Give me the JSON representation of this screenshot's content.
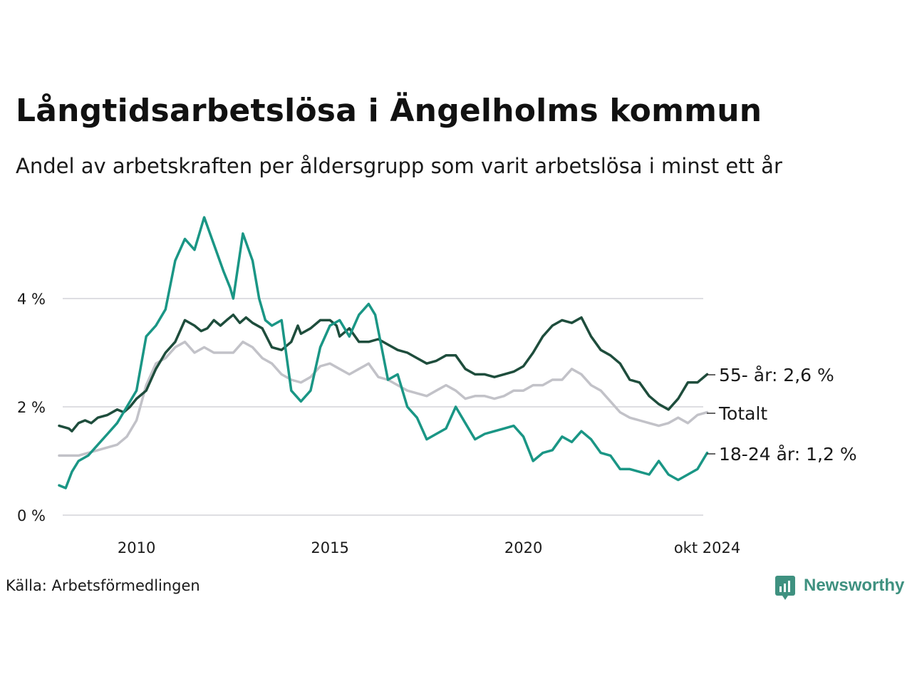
{
  "title": "Långtidsarbetslösa i Ängelholms kommun",
  "subtitle": "Andel av arbetskraften per åldersgrupp som varit arbetslösa i minst ett år",
  "source": "Källa: Arbetsförmedlingen",
  "brand": {
    "name": "Newsworthy",
    "icon": "newsworthy-logo-icon",
    "color": "#3f9180"
  },
  "chart_data": {
    "type": "line",
    "x_unit": "year",
    "xlim": [
      2008.0,
      2024.75
    ],
    "ylim": [
      0,
      5.8
    ],
    "y_ticks": [
      {
        "value": 0,
        "label": "0 %"
      },
      {
        "value": 2,
        "label": "2 %"
      },
      {
        "value": 4,
        "label": "4 %"
      }
    ],
    "x_ticks": [
      {
        "value": 2010,
        "label": "2010"
      },
      {
        "value": 2015,
        "label": "2015"
      },
      {
        "value": 2020,
        "label": "2020"
      },
      {
        "value": 2024.75,
        "label": "okt 2024"
      }
    ],
    "grid": true,
    "legend": "direct labels at right end of lines",
    "series": [
      {
        "name": "Totalt",
        "end_label": "Totalt",
        "color": "#c2c2c8",
        "points": [
          [
            2008.0,
            1.1
          ],
          [
            2008.5,
            1.1
          ],
          [
            2009.0,
            1.2
          ],
          [
            2009.5,
            1.3
          ],
          [
            2009.75,
            1.45
          ],
          [
            2010.0,
            1.75
          ],
          [
            2010.25,
            2.4
          ],
          [
            2010.5,
            2.8
          ],
          [
            2010.75,
            2.9
          ],
          [
            2011.0,
            3.1
          ],
          [
            2011.25,
            3.2
          ],
          [
            2011.5,
            3.0
          ],
          [
            2011.75,
            3.1
          ],
          [
            2012.0,
            3.0
          ],
          [
            2012.5,
            3.0
          ],
          [
            2012.75,
            3.2
          ],
          [
            2013.0,
            3.1
          ],
          [
            2013.25,
            2.9
          ],
          [
            2013.5,
            2.8
          ],
          [
            2013.75,
            2.6
          ],
          [
            2014.0,
            2.5
          ],
          [
            2014.25,
            2.45
          ],
          [
            2014.5,
            2.55
          ],
          [
            2014.75,
            2.75
          ],
          [
            2015.0,
            2.8
          ],
          [
            2015.25,
            2.7
          ],
          [
            2015.5,
            2.6
          ],
          [
            2015.75,
            2.7
          ],
          [
            2016.0,
            2.8
          ],
          [
            2016.25,
            2.55
          ],
          [
            2016.5,
            2.5
          ],
          [
            2016.75,
            2.4
          ],
          [
            2017.0,
            2.3
          ],
          [
            2017.5,
            2.2
          ],
          [
            2017.75,
            2.3
          ],
          [
            2018.0,
            2.4
          ],
          [
            2018.25,
            2.3
          ],
          [
            2018.5,
            2.15
          ],
          [
            2018.75,
            2.2
          ],
          [
            2019.0,
            2.2
          ],
          [
            2019.25,
            2.15
          ],
          [
            2019.5,
            2.2
          ],
          [
            2019.75,
            2.3
          ],
          [
            2020.0,
            2.3
          ],
          [
            2020.25,
            2.4
          ],
          [
            2020.5,
            2.4
          ],
          [
            2020.75,
            2.5
          ],
          [
            2021.0,
            2.5
          ],
          [
            2021.25,
            2.7
          ],
          [
            2021.5,
            2.6
          ],
          [
            2021.75,
            2.4
          ],
          [
            2022.0,
            2.3
          ],
          [
            2022.25,
            2.1
          ],
          [
            2022.5,
            1.9
          ],
          [
            2022.75,
            1.8
          ],
          [
            2023.0,
            1.75
          ],
          [
            2023.25,
            1.7
          ],
          [
            2023.5,
            1.65
          ],
          [
            2023.75,
            1.7
          ],
          [
            2024.0,
            1.8
          ],
          [
            2024.25,
            1.7
          ],
          [
            2024.5,
            1.85
          ],
          [
            2024.75,
            1.9
          ]
        ]
      },
      {
        "name": "55- år",
        "end_label": "55- år: 2,6 %",
        "color": "#1e4d3c",
        "points": [
          [
            2008.0,
            1.65
          ],
          [
            2008.25,
            1.6
          ],
          [
            2008.33,
            1.55
          ],
          [
            2008.5,
            1.7
          ],
          [
            2008.67,
            1.75
          ],
          [
            2008.83,
            1.7
          ],
          [
            2009.0,
            1.8
          ],
          [
            2009.25,
            1.85
          ],
          [
            2009.5,
            1.95
          ],
          [
            2009.67,
            1.9
          ],
          [
            2009.83,
            2.0
          ],
          [
            2010.0,
            2.15
          ],
          [
            2010.25,
            2.3
          ],
          [
            2010.5,
            2.7
          ],
          [
            2010.75,
            3.0
          ],
          [
            2011.0,
            3.2
          ],
          [
            2011.25,
            3.6
          ],
          [
            2011.5,
            3.5
          ],
          [
            2011.67,
            3.4
          ],
          [
            2011.83,
            3.45
          ],
          [
            2012.0,
            3.6
          ],
          [
            2012.17,
            3.5
          ],
          [
            2012.33,
            3.6
          ],
          [
            2012.5,
            3.7
          ],
          [
            2012.67,
            3.55
          ],
          [
            2012.83,
            3.65
          ],
          [
            2013.0,
            3.55
          ],
          [
            2013.25,
            3.45
          ],
          [
            2013.5,
            3.1
          ],
          [
            2013.75,
            3.05
          ],
          [
            2014.0,
            3.2
          ],
          [
            2014.17,
            3.5
          ],
          [
            2014.25,
            3.35
          ],
          [
            2014.5,
            3.45
          ],
          [
            2014.75,
            3.6
          ],
          [
            2015.0,
            3.6
          ],
          [
            2015.17,
            3.5
          ],
          [
            2015.25,
            3.3
          ],
          [
            2015.5,
            3.45
          ],
          [
            2015.75,
            3.2
          ],
          [
            2016.0,
            3.2
          ],
          [
            2016.25,
            3.25
          ],
          [
            2016.5,
            3.15
          ],
          [
            2016.75,
            3.05
          ],
          [
            2017.0,
            3.0
          ],
          [
            2017.25,
            2.9
          ],
          [
            2017.5,
            2.8
          ],
          [
            2017.75,
            2.85
          ],
          [
            2018.0,
            2.95
          ],
          [
            2018.25,
            2.95
          ],
          [
            2018.5,
            2.7
          ],
          [
            2018.75,
            2.6
          ],
          [
            2019.0,
            2.6
          ],
          [
            2019.25,
            2.55
          ],
          [
            2019.5,
            2.6
          ],
          [
            2019.75,
            2.65
          ],
          [
            2020.0,
            2.75
          ],
          [
            2020.25,
            3.0
          ],
          [
            2020.5,
            3.3
          ],
          [
            2020.75,
            3.5
          ],
          [
            2021.0,
            3.6
          ],
          [
            2021.25,
            3.55
          ],
          [
            2021.5,
            3.65
          ],
          [
            2021.75,
            3.3
          ],
          [
            2022.0,
            3.05
          ],
          [
            2022.25,
            2.95
          ],
          [
            2022.5,
            2.8
          ],
          [
            2022.75,
            2.5
          ],
          [
            2023.0,
            2.45
          ],
          [
            2023.25,
            2.2
          ],
          [
            2023.5,
            2.05
          ],
          [
            2023.75,
            1.95
          ],
          [
            2024.0,
            2.15
          ],
          [
            2024.25,
            2.45
          ],
          [
            2024.5,
            2.45
          ],
          [
            2024.75,
            2.6
          ]
        ]
      },
      {
        "name": "18-24 år",
        "end_label": "18-24 år: 1,2 %",
        "color": "#1a9685",
        "points": [
          [
            2008.0,
            0.55
          ],
          [
            2008.17,
            0.5
          ],
          [
            2008.33,
            0.8
          ],
          [
            2008.5,
            1.0
          ],
          [
            2008.75,
            1.1
          ],
          [
            2009.0,
            1.3
          ],
          [
            2009.25,
            1.5
          ],
          [
            2009.5,
            1.7
          ],
          [
            2009.75,
            2.0
          ],
          [
            2010.0,
            2.3
          ],
          [
            2010.25,
            3.3
          ],
          [
            2010.5,
            3.5
          ],
          [
            2010.75,
            3.8
          ],
          [
            2011.0,
            4.7
          ],
          [
            2011.25,
            5.1
          ],
          [
            2011.5,
            4.9
          ],
          [
            2011.75,
            5.5
          ],
          [
            2012.0,
            5.0
          ],
          [
            2012.25,
            4.5
          ],
          [
            2012.42,
            4.2
          ],
          [
            2012.5,
            4.0
          ],
          [
            2012.75,
            5.2
          ],
          [
            2013.0,
            4.7
          ],
          [
            2013.17,
            4.0
          ],
          [
            2013.33,
            3.6
          ],
          [
            2013.5,
            3.5
          ],
          [
            2013.75,
            3.6
          ],
          [
            2014.0,
            2.3
          ],
          [
            2014.25,
            2.1
          ],
          [
            2014.5,
            2.3
          ],
          [
            2014.75,
            3.1
          ],
          [
            2015.0,
            3.5
          ],
          [
            2015.25,
            3.6
          ],
          [
            2015.5,
            3.3
          ],
          [
            2015.75,
            3.7
          ],
          [
            2016.0,
            3.9
          ],
          [
            2016.17,
            3.7
          ],
          [
            2016.5,
            2.5
          ],
          [
            2016.75,
            2.6
          ],
          [
            2017.0,
            2.0
          ],
          [
            2017.25,
            1.8
          ],
          [
            2017.5,
            1.4
          ],
          [
            2017.75,
            1.5
          ],
          [
            2018.0,
            1.6
          ],
          [
            2018.25,
            2.0
          ],
          [
            2018.5,
            1.7
          ],
          [
            2018.75,
            1.4
          ],
          [
            2019.0,
            1.5
          ],
          [
            2019.25,
            1.55
          ],
          [
            2019.5,
            1.6
          ],
          [
            2019.75,
            1.65
          ],
          [
            2020.0,
            1.45
          ],
          [
            2020.25,
            1.0
          ],
          [
            2020.5,
            1.15
          ],
          [
            2020.75,
            1.2
          ],
          [
            2021.0,
            1.45
          ],
          [
            2021.25,
            1.35
          ],
          [
            2021.5,
            1.55
          ],
          [
            2021.75,
            1.4
          ],
          [
            2022.0,
            1.15
          ],
          [
            2022.25,
            1.1
          ],
          [
            2022.5,
            0.85
          ],
          [
            2022.75,
            0.85
          ],
          [
            2023.0,
            0.8
          ],
          [
            2023.25,
            0.75
          ],
          [
            2023.5,
            1.0
          ],
          [
            2023.75,
            0.75
          ],
          [
            2024.0,
            0.65
          ],
          [
            2024.25,
            0.75
          ],
          [
            2024.5,
            0.85
          ],
          [
            2024.75,
            1.15
          ]
        ]
      }
    ]
  }
}
